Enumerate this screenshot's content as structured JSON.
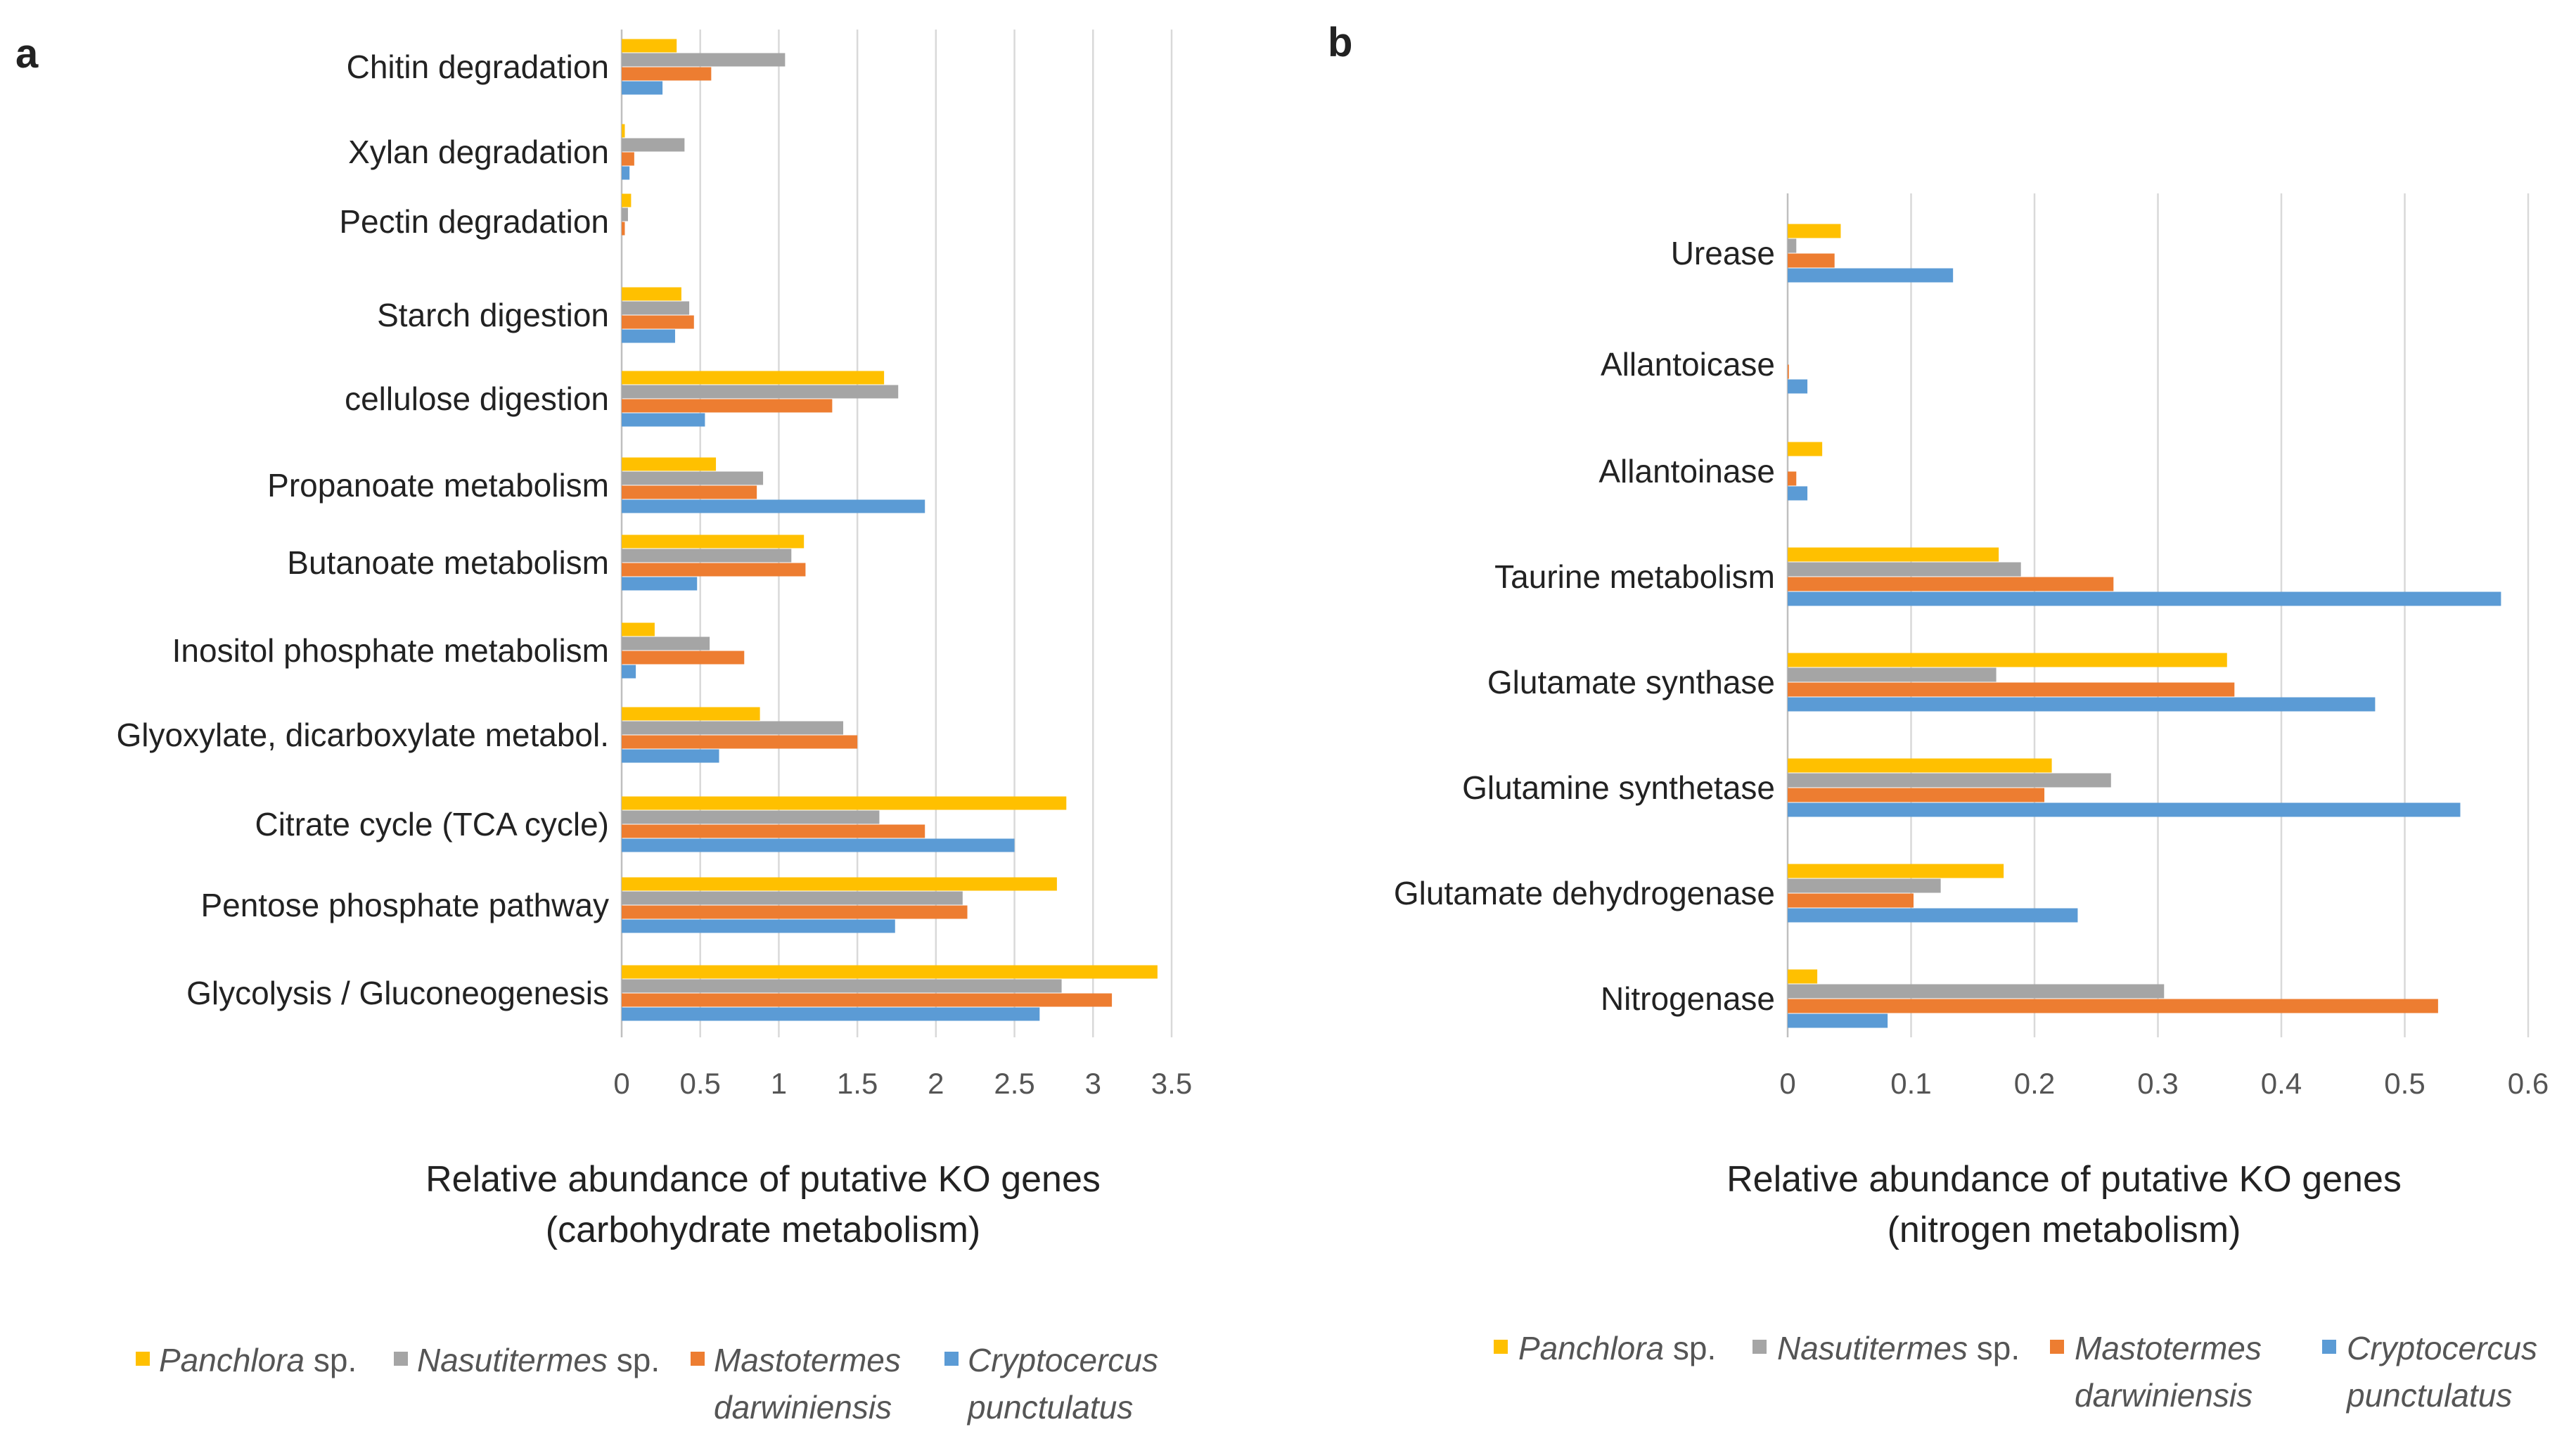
{
  "colors": {
    "panchlora": "#FFC000",
    "nasutitermes": "#A5A5A5",
    "mastotermes": "#ED7D31",
    "cryptocercus": "#5B9BD5",
    "grid": "#D9D9D9",
    "text": "#222222"
  },
  "chart_data": [
    {
      "panel_label": "a",
      "type": "bar",
      "orientation": "horizontal",
      "title": "",
      "xlabel_line1": "Relative abundance of putative KO genes",
      "xlabel_line2": "(carbohydrate metabolism)",
      "xlim": [
        0,
        3.5
      ],
      "xticks": [
        "0",
        "0.5",
        "1",
        "1.5",
        "2",
        "2.5",
        "3",
        "3.5"
      ],
      "grid": true,
      "legend_position": "bottom",
      "categories": [
        "Chitin degradation",
        "Xylan degradation",
        "Pectin degradation",
        "Starch digestion",
        "cellulose digestion",
        "Propanoate metabolism",
        "Butanoate metabolism",
        "Inositol phosphate metabolism",
        "Glyoxylate, dicarboxylate metabol.",
        "Citrate cycle (TCA cycle)",
        "Pentose phosphate pathway",
        "Glycolysis / Gluconeogenesis"
      ],
      "series": [
        {
          "name": "Panchlora",
          "name_suffix": " sp.",
          "line2": "",
          "color_key": "panchlora",
          "values": [
            0.35,
            0.02,
            0.06,
            0.38,
            1.67,
            0.6,
            1.16,
            0.21,
            0.88,
            2.83,
            2.77,
            3.41
          ]
        },
        {
          "name": "Nasutitermes",
          "name_suffix": " sp.",
          "line2": "",
          "color_key": "nasutitermes",
          "values": [
            1.04,
            0.4,
            0.04,
            0.43,
            1.76,
            0.9,
            1.08,
            0.56,
            1.41,
            1.64,
            2.17,
            2.8
          ]
        },
        {
          "name": "Mastotermes",
          "name_suffix": "",
          "line2": "darwiniensis",
          "color_key": "mastotermes",
          "values": [
            0.57,
            0.08,
            0.02,
            0.46,
            1.34,
            0.86,
            1.17,
            0.78,
            1.5,
            1.93,
            2.2,
            3.12
          ]
        },
        {
          "name": "Cryptocercus",
          "name_suffix": "",
          "line2": "punctulatus",
          "color_key": "cryptocercus",
          "values": [
            0.26,
            0.05,
            0.0,
            0.34,
            0.53,
            1.93,
            0.48,
            0.09,
            0.62,
            2.5,
            1.74,
            2.66
          ]
        }
      ]
    },
    {
      "panel_label": "b",
      "type": "bar",
      "orientation": "horizontal",
      "title": "",
      "xlabel_line1": "Relative abundance of putative KO genes",
      "xlabel_line2": "(nitrogen metabolism)",
      "xlim": [
        0,
        0.6
      ],
      "xticks": [
        "0",
        "0.1",
        "0.2",
        "0.3",
        "0.4",
        "0.5",
        "0.6"
      ],
      "grid": true,
      "legend_position": "bottom",
      "categories": [
        "Urease",
        "Allantoicase",
        "Allantoinase",
        "Taurine metabolism",
        "Glutamate synthase",
        "Glutamine synthetase",
        "Glutamate dehydrogenase",
        "Nitrogenase"
      ],
      "series": [
        {
          "name": "Panchlora",
          "name_suffix": " sp.",
          "line2": "",
          "color_key": "panchlora",
          "values": [
            0.043,
            0.0,
            0.028,
            0.171,
            0.356,
            0.214,
            0.175,
            0.024
          ]
        },
        {
          "name": "Nasutitermes",
          "name_suffix": " sp.",
          "line2": "",
          "color_key": "nasutitermes",
          "values": [
            0.007,
            0.0,
            0.0,
            0.189,
            0.169,
            0.262,
            0.124,
            0.305
          ]
        },
        {
          "name": "Mastotermes",
          "name_suffix": "",
          "line2": "darwiniensis",
          "color_key": "mastotermes",
          "values": [
            0.038,
            0.001,
            0.007,
            0.264,
            0.362,
            0.208,
            0.102,
            0.527
          ]
        },
        {
          "name": "Cryptocercus",
          "name_suffix": "",
          "line2": "punctulatus",
          "color_key": "cryptocercus",
          "values": [
            0.134,
            0.016,
            0.016,
            0.578,
            0.476,
            0.545,
            0.235,
            0.081
          ]
        }
      ]
    }
  ]
}
